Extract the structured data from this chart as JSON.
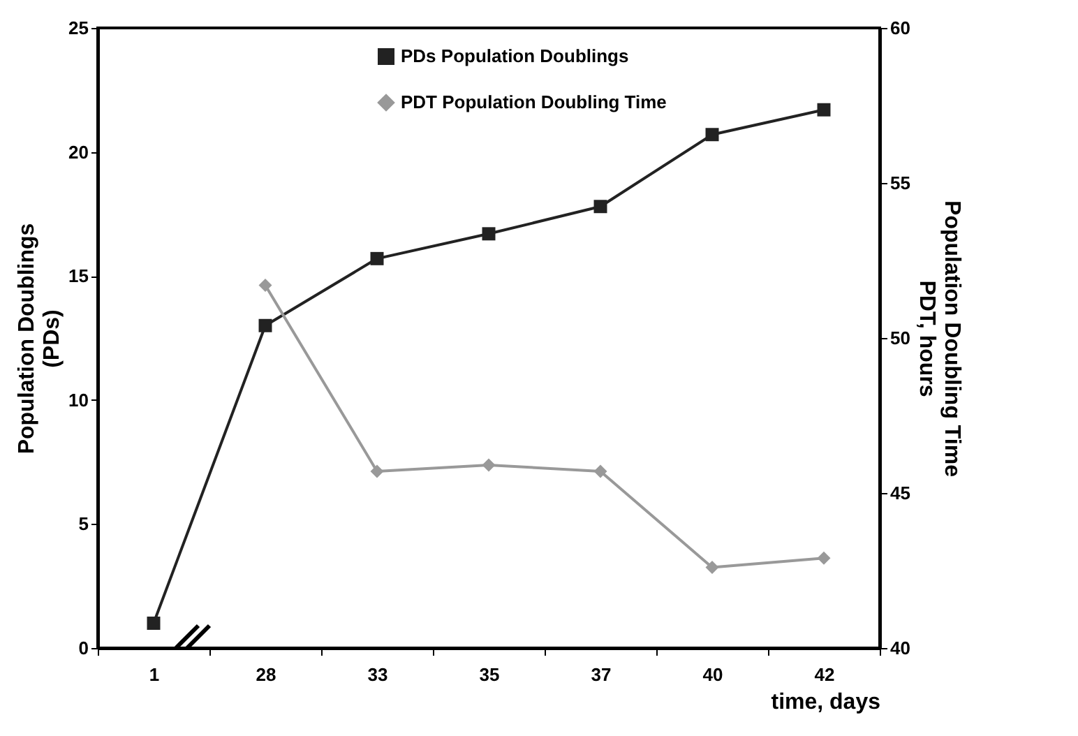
{
  "chart_data": {
    "type": "line",
    "xlabel": "time, days",
    "ylabel": "Population Doublings\n(PDs)",
    "y2label": "Population Doubling Time\nPDT, hours",
    "categories": [
      "1",
      "28",
      "33",
      "35",
      "37",
      "40",
      "42"
    ],
    "series": [
      {
        "name": "PDs Population Doublings",
        "color": "#222222",
        "marker": "square",
        "values": [
          1,
          13,
          15.7,
          16.7,
          17.8,
          20.7,
          21.7
        ]
      },
      {
        "name": "PDT Population Doubling Time",
        "color": "#999999",
        "marker": "diamond",
        "axis": "y2",
        "values": [
          null,
          51.7,
          45.7,
          45.9,
          45.7,
          42.6,
          42.9
        ]
      }
    ],
    "ylim": [
      0,
      25
    ],
    "yticks": [
      0,
      5,
      10,
      15,
      20,
      25
    ],
    "y2lim": [
      40,
      60
    ],
    "y2ticks": [
      40,
      45,
      50,
      55,
      60
    ],
    "grid": false,
    "legend": "top right"
  }
}
